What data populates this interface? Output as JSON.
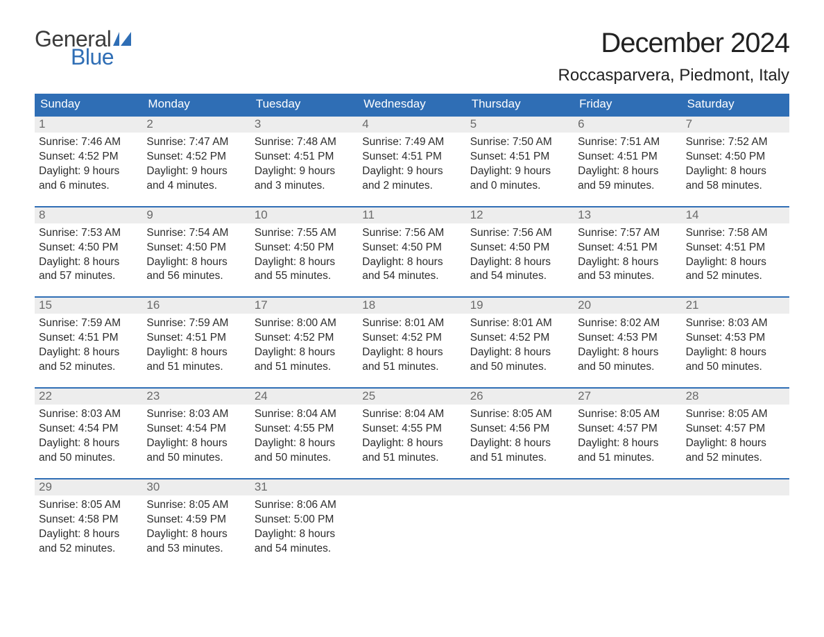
{
  "logo": {
    "word1": "General",
    "word2": "Blue",
    "text_color": "#3b3b3b",
    "accent_color": "#2f6eb5"
  },
  "title": "December 2024",
  "location": "Roccasparvera, Piedmont, Italy",
  "colors": {
    "header_bg": "#2f6eb5",
    "header_text": "#ffffff",
    "daynum_bg": "#ededed",
    "daynum_text": "#6a6a6a",
    "body_text": "#2c2c2c",
    "week_border": "#2f6eb5",
    "page_bg": "#ffffff"
  },
  "typography": {
    "title_fontsize": 40,
    "location_fontsize": 24,
    "weekday_fontsize": 17,
    "daynum_fontsize": 17,
    "cell_fontsize": 15.5,
    "logo_fontsize": 32
  },
  "weekdays": [
    "Sunday",
    "Monday",
    "Tuesday",
    "Wednesday",
    "Thursday",
    "Friday",
    "Saturday"
  ],
  "weeks": [
    [
      {
        "n": "1",
        "sunrise": "Sunrise: 7:46 AM",
        "sunset": "Sunset: 4:52 PM",
        "d1": "Daylight: 9 hours",
        "d2": "and 6 minutes."
      },
      {
        "n": "2",
        "sunrise": "Sunrise: 7:47 AM",
        "sunset": "Sunset: 4:52 PM",
        "d1": "Daylight: 9 hours",
        "d2": "and 4 minutes."
      },
      {
        "n": "3",
        "sunrise": "Sunrise: 7:48 AM",
        "sunset": "Sunset: 4:51 PM",
        "d1": "Daylight: 9 hours",
        "d2": "and 3 minutes."
      },
      {
        "n": "4",
        "sunrise": "Sunrise: 7:49 AM",
        "sunset": "Sunset: 4:51 PM",
        "d1": "Daylight: 9 hours",
        "d2": "and 2 minutes."
      },
      {
        "n": "5",
        "sunrise": "Sunrise: 7:50 AM",
        "sunset": "Sunset: 4:51 PM",
        "d1": "Daylight: 9 hours",
        "d2": "and 0 minutes."
      },
      {
        "n": "6",
        "sunrise": "Sunrise: 7:51 AM",
        "sunset": "Sunset: 4:51 PM",
        "d1": "Daylight: 8 hours",
        "d2": "and 59 minutes."
      },
      {
        "n": "7",
        "sunrise": "Sunrise: 7:52 AM",
        "sunset": "Sunset: 4:50 PM",
        "d1": "Daylight: 8 hours",
        "d2": "and 58 minutes."
      }
    ],
    [
      {
        "n": "8",
        "sunrise": "Sunrise: 7:53 AM",
        "sunset": "Sunset: 4:50 PM",
        "d1": "Daylight: 8 hours",
        "d2": "and 57 minutes."
      },
      {
        "n": "9",
        "sunrise": "Sunrise: 7:54 AM",
        "sunset": "Sunset: 4:50 PM",
        "d1": "Daylight: 8 hours",
        "d2": "and 56 minutes."
      },
      {
        "n": "10",
        "sunrise": "Sunrise: 7:55 AM",
        "sunset": "Sunset: 4:50 PM",
        "d1": "Daylight: 8 hours",
        "d2": "and 55 minutes."
      },
      {
        "n": "11",
        "sunrise": "Sunrise: 7:56 AM",
        "sunset": "Sunset: 4:50 PM",
        "d1": "Daylight: 8 hours",
        "d2": "and 54 minutes."
      },
      {
        "n": "12",
        "sunrise": "Sunrise: 7:56 AM",
        "sunset": "Sunset: 4:50 PM",
        "d1": "Daylight: 8 hours",
        "d2": "and 54 minutes."
      },
      {
        "n": "13",
        "sunrise": "Sunrise: 7:57 AM",
        "sunset": "Sunset: 4:51 PM",
        "d1": "Daylight: 8 hours",
        "d2": "and 53 minutes."
      },
      {
        "n": "14",
        "sunrise": "Sunrise: 7:58 AM",
        "sunset": "Sunset: 4:51 PM",
        "d1": "Daylight: 8 hours",
        "d2": "and 52 minutes."
      }
    ],
    [
      {
        "n": "15",
        "sunrise": "Sunrise: 7:59 AM",
        "sunset": "Sunset: 4:51 PM",
        "d1": "Daylight: 8 hours",
        "d2": "and 52 minutes."
      },
      {
        "n": "16",
        "sunrise": "Sunrise: 7:59 AM",
        "sunset": "Sunset: 4:51 PM",
        "d1": "Daylight: 8 hours",
        "d2": "and 51 minutes."
      },
      {
        "n": "17",
        "sunrise": "Sunrise: 8:00 AM",
        "sunset": "Sunset: 4:52 PM",
        "d1": "Daylight: 8 hours",
        "d2": "and 51 minutes."
      },
      {
        "n": "18",
        "sunrise": "Sunrise: 8:01 AM",
        "sunset": "Sunset: 4:52 PM",
        "d1": "Daylight: 8 hours",
        "d2": "and 51 minutes."
      },
      {
        "n": "19",
        "sunrise": "Sunrise: 8:01 AM",
        "sunset": "Sunset: 4:52 PM",
        "d1": "Daylight: 8 hours",
        "d2": "and 50 minutes."
      },
      {
        "n": "20",
        "sunrise": "Sunrise: 8:02 AM",
        "sunset": "Sunset: 4:53 PM",
        "d1": "Daylight: 8 hours",
        "d2": "and 50 minutes."
      },
      {
        "n": "21",
        "sunrise": "Sunrise: 8:03 AM",
        "sunset": "Sunset: 4:53 PM",
        "d1": "Daylight: 8 hours",
        "d2": "and 50 minutes."
      }
    ],
    [
      {
        "n": "22",
        "sunrise": "Sunrise: 8:03 AM",
        "sunset": "Sunset: 4:54 PM",
        "d1": "Daylight: 8 hours",
        "d2": "and 50 minutes."
      },
      {
        "n": "23",
        "sunrise": "Sunrise: 8:03 AM",
        "sunset": "Sunset: 4:54 PM",
        "d1": "Daylight: 8 hours",
        "d2": "and 50 minutes."
      },
      {
        "n": "24",
        "sunrise": "Sunrise: 8:04 AM",
        "sunset": "Sunset: 4:55 PM",
        "d1": "Daylight: 8 hours",
        "d2": "and 50 minutes."
      },
      {
        "n": "25",
        "sunrise": "Sunrise: 8:04 AM",
        "sunset": "Sunset: 4:55 PM",
        "d1": "Daylight: 8 hours",
        "d2": "and 51 minutes."
      },
      {
        "n": "26",
        "sunrise": "Sunrise: 8:05 AM",
        "sunset": "Sunset: 4:56 PM",
        "d1": "Daylight: 8 hours",
        "d2": "and 51 minutes."
      },
      {
        "n": "27",
        "sunrise": "Sunrise: 8:05 AM",
        "sunset": "Sunset: 4:57 PM",
        "d1": "Daylight: 8 hours",
        "d2": "and 51 minutes."
      },
      {
        "n": "28",
        "sunrise": "Sunrise: 8:05 AM",
        "sunset": "Sunset: 4:57 PM",
        "d1": "Daylight: 8 hours",
        "d2": "and 52 minutes."
      }
    ],
    [
      {
        "n": "29",
        "sunrise": "Sunrise: 8:05 AM",
        "sunset": "Sunset: 4:58 PM",
        "d1": "Daylight: 8 hours",
        "d2": "and 52 minutes."
      },
      {
        "n": "30",
        "sunrise": "Sunrise: 8:05 AM",
        "sunset": "Sunset: 4:59 PM",
        "d1": "Daylight: 8 hours",
        "d2": "and 53 minutes."
      },
      {
        "n": "31",
        "sunrise": "Sunrise: 8:06 AM",
        "sunset": "Sunset: 5:00 PM",
        "d1": "Daylight: 8 hours",
        "d2": "and 54 minutes."
      },
      null,
      null,
      null,
      null
    ]
  ]
}
